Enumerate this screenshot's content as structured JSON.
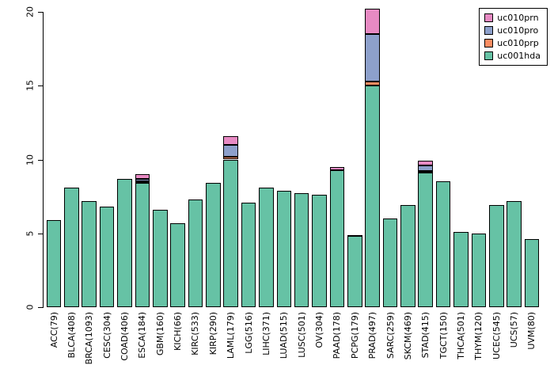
{
  "chart_data": {
    "type": "bar",
    "stacked": true,
    "title": "",
    "xlabel": "",
    "ylabel": "",
    "ylim": [
      0,
      20
    ],
    "yticks": [
      0,
      5,
      10,
      15,
      20
    ],
    "grid": false,
    "legend_position": "top-right",
    "categories": [
      "ACC(79)",
      "BLCA(408)",
      "BRCA(1093)",
      "CESC(304)",
      "COAD(406)",
      "ESCA(184)",
      "GBM(160)",
      "KICH(66)",
      "KIRC(533)",
      "KIRP(290)",
      "LAML(179)",
      "LGG(516)",
      "LIHC(371)",
      "LUAD(515)",
      "LUSC(501)",
      "OV(304)",
      "PAAD(178)",
      "PCPG(179)",
      "PRAD(497)",
      "SARC(259)",
      "SKCM(469)",
      "STAD(415)",
      "TGCT(150)",
      "THCA(501)",
      "THYM(120)",
      "UCEC(545)",
      "UCS(57)",
      "UVM(80)"
    ],
    "series": [
      {
        "name": "uc001hda",
        "color": "#66C2A5",
        "values": [
          5.9,
          8.1,
          7.2,
          6.8,
          8.7,
          8.4,
          6.6,
          5.7,
          7.3,
          8.4,
          10.0,
          7.1,
          8.1,
          7.9,
          7.7,
          7.6,
          9.3,
          4.8,
          15.0,
          6.0,
          6.9,
          9.1,
          8.5,
          5.1,
          5.0,
          6.9,
          7.2,
          4.6
        ]
      },
      {
        "name": "uc010prp",
        "color": "#FC8D62",
        "values": [
          0,
          0,
          0,
          0,
          0,
          0.1,
          0,
          0,
          0,
          0,
          0.2,
          0,
          0,
          0,
          0,
          0,
          0,
          0,
          0.3,
          0,
          0,
          0.1,
          0,
          0,
          0,
          0,
          0,
          0
        ]
      },
      {
        "name": "uc010pro",
        "color": "#8DA0CB",
        "values": [
          0,
          0,
          0,
          0,
          0,
          0.2,
          0,
          0,
          0,
          0,
          0.8,
          0,
          0,
          0,
          0,
          0,
          0,
          0,
          3.2,
          0,
          0,
          0.4,
          0,
          0,
          0,
          0,
          0,
          0
        ]
      },
      {
        "name": "uc010prn",
        "color": "#E78AC3",
        "values": [
          0,
          0,
          0,
          0,
          0,
          0.3,
          0,
          0,
          0,
          0,
          0.6,
          0,
          0,
          0,
          0,
          0,
          0.2,
          0.1,
          1.7,
          0,
          0,
          0.3,
          0,
          0,
          0,
          0,
          0,
          0
        ]
      }
    ],
    "legend": [
      {
        "label": "uc010prn",
        "color": "#E78AC3"
      },
      {
        "label": "uc010pro",
        "color": "#8DA0CB"
      },
      {
        "label": "uc010prp",
        "color": "#FC8D62"
      },
      {
        "label": "uc001hda",
        "color": "#66C2A5"
      }
    ]
  }
}
